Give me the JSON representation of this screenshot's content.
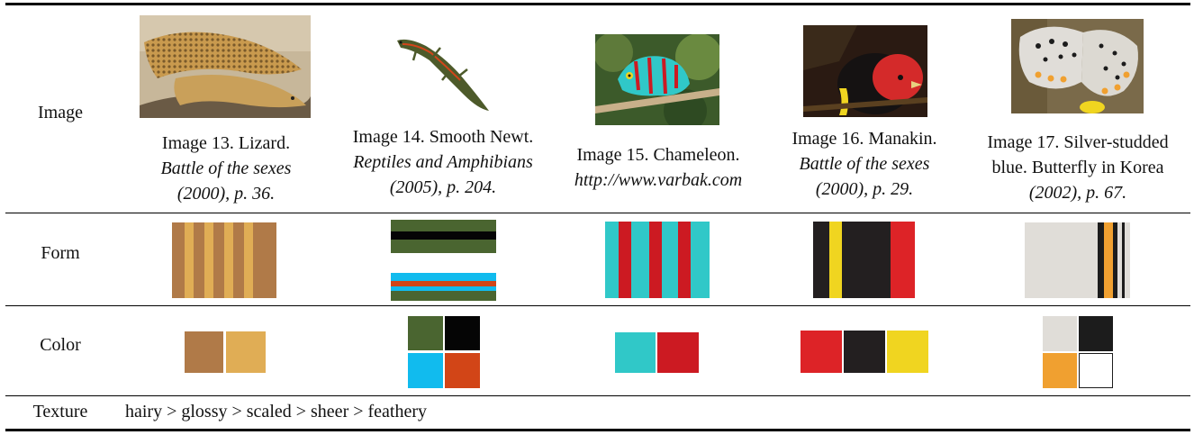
{
  "table": {
    "row_labels": {
      "image": "Image",
      "form": "Form",
      "color": "Color",
      "texture": "Texture"
    },
    "columns": [
      {
        "caption_line1": "Image 13. Lizard.",
        "caption_italic": "Battle of the sexes",
        "caption_line3": "(2000), p. 36."
      },
      {
        "caption_line1": "Image 14. Smooth Newt.",
        "caption_italic": "Reptiles and Amphibians",
        "caption_line3": "(2005), p. 204."
      },
      {
        "caption_line1": "Image 15. Chameleon.",
        "caption_italic": "http://www.varbak.com",
        "caption_line3": ""
      },
      {
        "caption_line1": "Image 16. Manakin.",
        "caption_italic": "Battle of the sexes",
        "caption_line3": "(2000), p. 29."
      },
      {
        "caption_line1": "Image 17. Silver-studded",
        "caption_italic": "blue. Butterfly in Korea",
        "caption_line3": "(2002), p. 67."
      }
    ],
    "texture_text": "hairy > glossy > scaled > sheer > feathery"
  },
  "colors": {
    "lizard": [
      "#b07a48",
      "#e0ad55"
    ],
    "newt": [
      "#4a6530",
      "#050505",
      "#11bbee",
      "#d24517"
    ],
    "chameleon": [
      "#30c8c8",
      "#cc1a22"
    ],
    "manakin": [
      "#dd2327",
      "#231f20",
      "#f0d520"
    ],
    "butterfly": [
      "#e0ddd8",
      "#1c1c1c",
      "#f0a030",
      "#ffffff"
    ]
  }
}
